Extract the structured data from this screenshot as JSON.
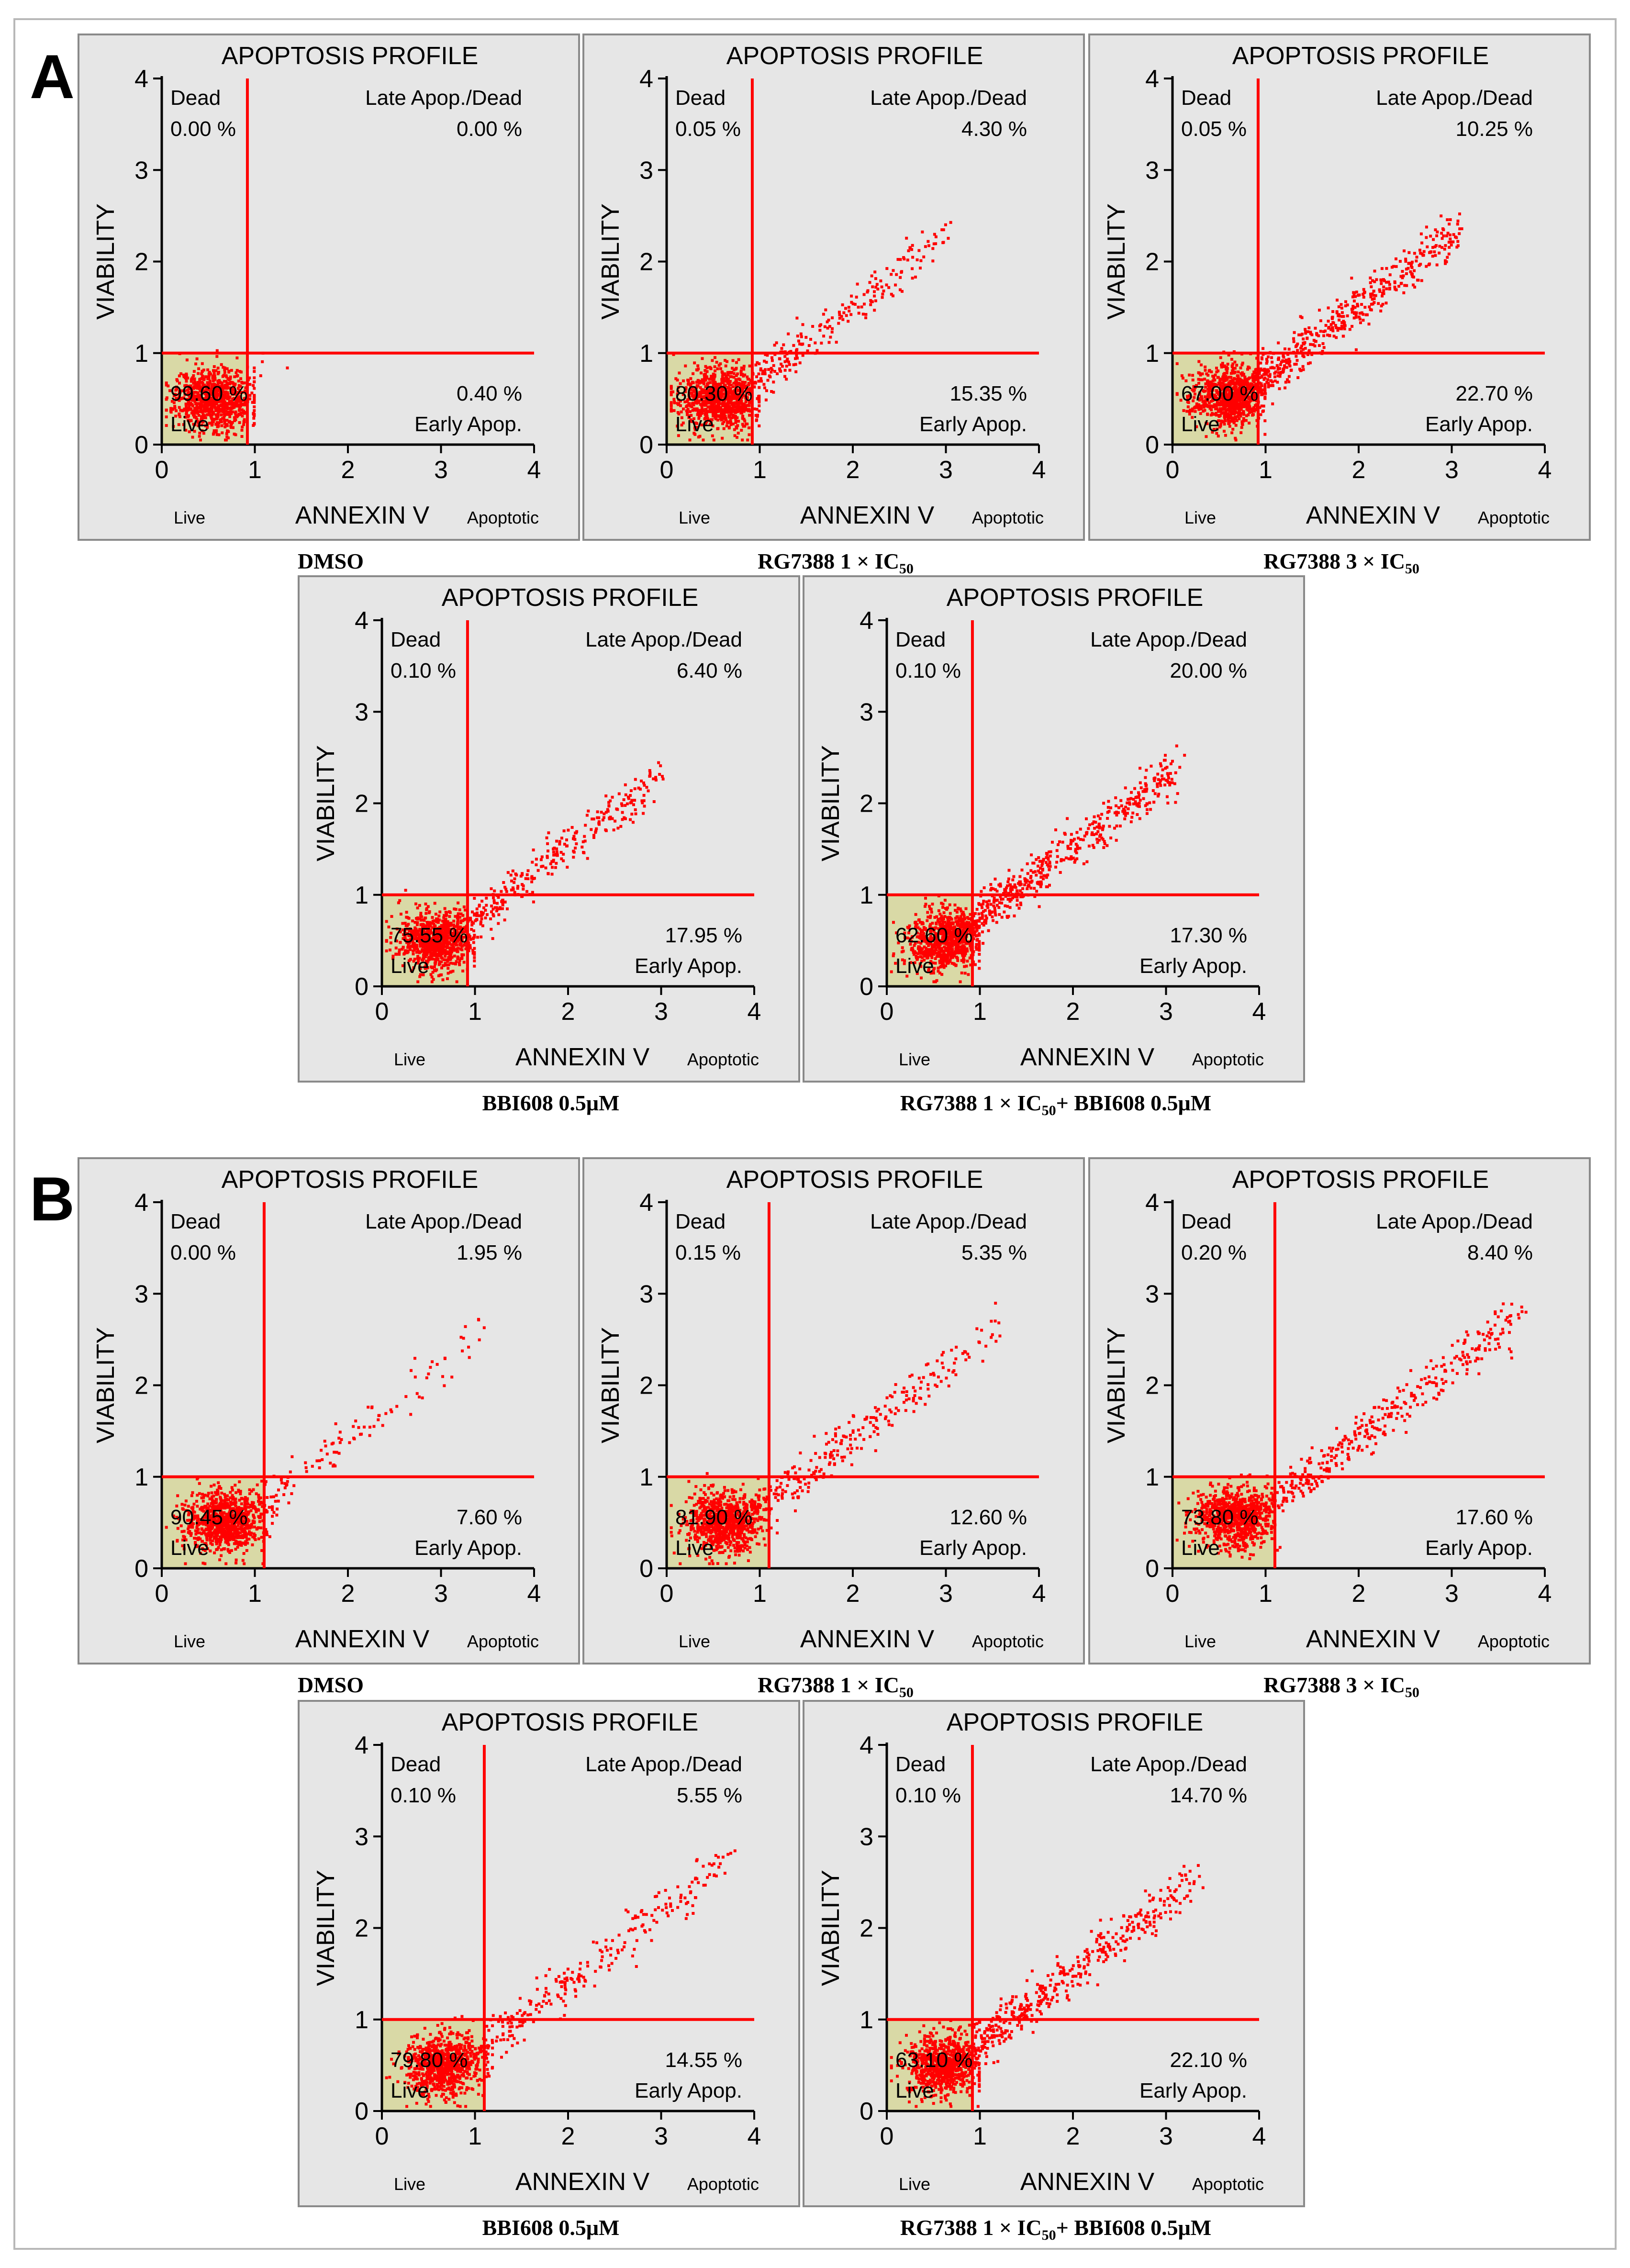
{
  "colors": {
    "panel_bg": "#e6e6e6",
    "live_quadrant": "#d9d9a6",
    "gate_line": "#ff0000",
    "points": "#ff0000"
  },
  "common": {
    "title": "APOPTOSIS PROFILE",
    "xlabel": "ANNEXIN V",
    "ylabel": "VIABILITY",
    "x_left_note": "Live",
    "x_right_note": "Apoptotic",
    "q_dead": "Dead",
    "q_late": "Late Apop./Dead",
    "q_early": "Early Apop.",
    "q_live": "Live",
    "xticks": [
      "0",
      "1",
      "2",
      "3",
      "4"
    ],
    "yticks": [
      "0",
      "1",
      "2",
      "3",
      "4"
    ],
    "xlim": [
      0,
      4
    ],
    "ylim": [
      0,
      4
    ]
  },
  "sections": [
    {
      "label": "A"
    },
    {
      "label": "B"
    }
  ],
  "chart_data": [
    {
      "type": "scatter",
      "section": "A",
      "caption": {
        "main": "DMSO",
        "sub": "",
        "suffix": ""
      },
      "gate_x": 0.92,
      "gate_y": 1.0,
      "dead": "0.00 %",
      "late": "0.00 %",
      "live": "99.60 %",
      "early": "0.40 %",
      "cloud": {
        "live_cx": 0.55,
        "live_cy": 0.5,
        "n_live": 900,
        "n_diag": 10,
        "diag_max": 1.6,
        "seed": 11
      }
    },
    {
      "type": "scatter",
      "section": "A",
      "caption": {
        "main": "RG7388 1 × IC",
        "sub": "50",
        "suffix": ""
      },
      "gate_x": 0.92,
      "gate_y": 1.0,
      "dead": "0.05 %",
      "late": "4.30 %",
      "live": "80.30 %",
      "early": "15.35 %",
      "cloud": {
        "live_cx": 0.55,
        "live_cy": 0.5,
        "n_live": 800,
        "n_diag": 320,
        "diag_max": 3.0,
        "seed": 22
      }
    },
    {
      "type": "scatter",
      "section": "A",
      "caption": {
        "main": "RG7388 3 × IC",
        "sub": "50",
        "suffix": ""
      },
      "gate_x": 0.92,
      "gate_y": 1.0,
      "dead": "0.05 %",
      "late": "10.25 %",
      "live": "67.00 %",
      "early": "22.70 %",
      "cloud": {
        "live_cx": 0.6,
        "live_cy": 0.55,
        "n_live": 700,
        "n_diag": 600,
        "diag_max": 3.1,
        "seed": 33
      }
    },
    {
      "type": "scatter",
      "section": "A",
      "caption": {
        "main": "BBI608 0.5μM",
        "sub": "",
        "suffix": ""
      },
      "gate_x": 0.92,
      "gate_y": 1.0,
      "dead": "0.10 %",
      "late": "6.40 %",
      "live": "75.55 %",
      "early": "17.95 %",
      "cloud": {
        "live_cx": 0.55,
        "live_cy": 0.5,
        "n_live": 750,
        "n_diag": 380,
        "diag_max": 3.0,
        "seed": 44
      }
    },
    {
      "type": "scatter",
      "section": "A",
      "caption": {
        "main": "RG7388 1 × IC",
        "sub": "50",
        "suffix": "+ BBI608 0.5μM"
      },
      "gate_x": 0.92,
      "gate_y": 1.0,
      "dead": "0.10 %",
      "late": "20.00 %",
      "live": "62.60 %",
      "early": "17.30 %",
      "cloud": {
        "live_cx": 0.6,
        "live_cy": 0.5,
        "n_live": 650,
        "n_diag": 650,
        "diag_max": 3.1,
        "seed": 55
      }
    },
    {
      "type": "scatter",
      "section": "B",
      "caption": {
        "main": "DMSO",
        "sub": "",
        "suffix": ""
      },
      "gate_x": 1.1,
      "gate_y": 1.0,
      "dead": "0.00 %",
      "late": "1.95 %",
      "live": "90.45 %",
      "early": "7.60 %",
      "cloud": {
        "live_cx": 0.65,
        "live_cy": 0.5,
        "n_live": 850,
        "n_diag": 160,
        "diag_max": 3.4,
        "seed": 66
      }
    },
    {
      "type": "scatter",
      "section": "B",
      "caption": {
        "main": "RG7388 1 × IC",
        "sub": "50",
        "suffix": ""
      },
      "gate_x": 1.1,
      "gate_y": 1.0,
      "dead": "0.15 %",
      "late": "5.35 %",
      "live": "81.90 %",
      "early": "12.60 %",
      "cloud": {
        "live_cx": 0.6,
        "live_cy": 0.5,
        "n_live": 800,
        "n_diag": 300,
        "diag_max": 3.5,
        "seed": 77
      }
    },
    {
      "type": "scatter",
      "section": "B",
      "caption": {
        "main": "RG7388 3 × IC",
        "sub": "50",
        "suffix": ""
      },
      "gate_x": 1.1,
      "gate_y": 1.0,
      "dead": "0.20 %",
      "late": "8.40 %",
      "live": "73.80 %",
      "early": "17.60 %",
      "cloud": {
        "live_cx": 0.65,
        "live_cy": 0.55,
        "n_live": 750,
        "n_diag": 450,
        "diag_max": 3.7,
        "seed": 88
      }
    },
    {
      "type": "scatter",
      "section": "B",
      "caption": {
        "main": "BBI608 0.5μM",
        "sub": "",
        "suffix": ""
      },
      "gate_x": 1.1,
      "gate_y": 1.0,
      "dead": "0.10 %",
      "late": "5.55 %",
      "live": "79.80 %",
      "early": "14.55 %",
      "cloud": {
        "live_cx": 0.65,
        "live_cy": 0.5,
        "n_live": 750,
        "n_diag": 320,
        "diag_max": 3.8,
        "seed": 99
      }
    },
    {
      "type": "scatter",
      "section": "B",
      "caption": {
        "main": "RG7388 1 × IC",
        "sub": "50",
        "suffix": "+ BBI608 0.5μM"
      },
      "gate_x": 0.92,
      "gate_y": 1.0,
      "dead": "0.10 %",
      "late": "14.70 %",
      "live": "63.10 %",
      "early": "22.10 %",
      "cloud": {
        "live_cx": 0.6,
        "live_cy": 0.5,
        "n_live": 700,
        "n_diag": 520,
        "diag_max": 3.3,
        "seed": 111
      }
    }
  ]
}
